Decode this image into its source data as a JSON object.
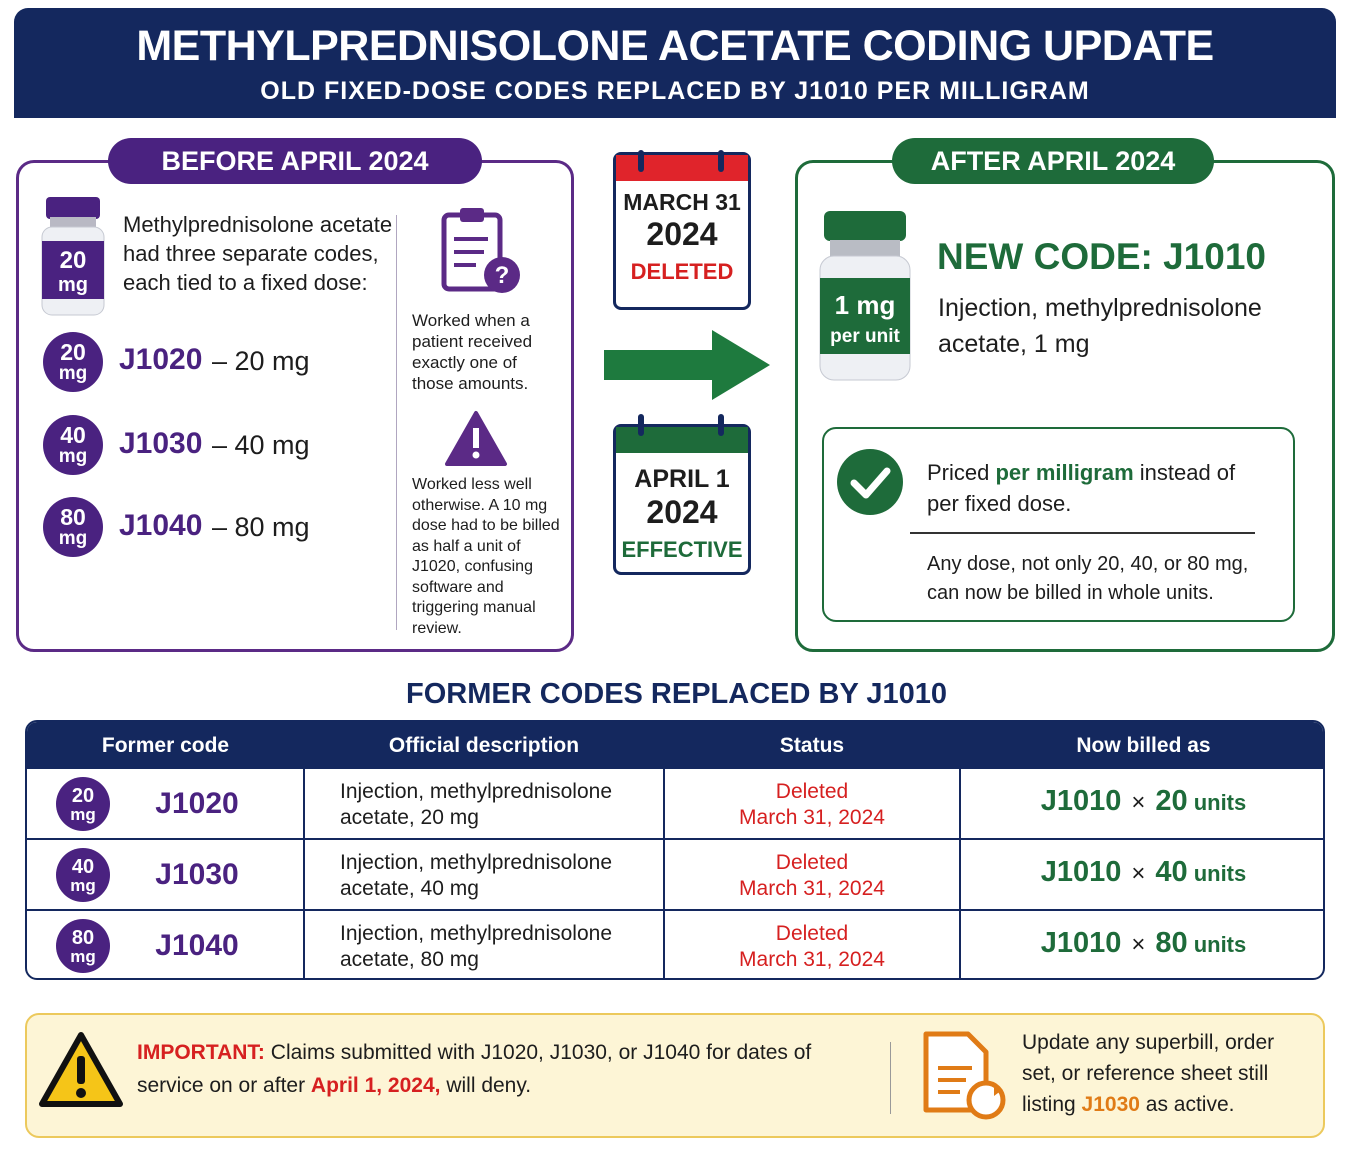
{
  "header": {
    "title": "METHYLPREDNISOLONE ACETATE CODING UPDATE",
    "subtitle": "OLD FIXED-DOSE CODES REPLACED BY J1010 PER MILLIGRAM"
  },
  "before": {
    "title": "BEFORE APRIL 2024",
    "vial": {
      "dose": "20",
      "unit": "mg"
    },
    "intro": [
      "Methylprednisolone acetate",
      "had three separate codes,",
      "each tied to a fixed dose:"
    ],
    "codes": [
      {
        "dose": "20",
        "unit": "mg",
        "code": "J1020",
        "label": "– 20 mg"
      },
      {
        "dose": "40",
        "unit": "mg",
        "code": "J1030",
        "label": "– 40 mg"
      },
      {
        "dose": "80",
        "unit": "mg",
        "code": "J1040",
        "label": "– 80 mg"
      }
    ],
    "note_worked": "Worked when a patient received exactly one of those amounts.",
    "note_less": "Worked less well otherwise. A 10 mg dose had to be billed as half a unit of J1020, confusing software and triggering manual review."
  },
  "calendar_deleted": {
    "date": "MARCH 31",
    "year": "2024",
    "status": "DELETED"
  },
  "calendar_effective": {
    "date": "APRIL 1",
    "year": "2024",
    "status": "EFFECTIVE"
  },
  "after": {
    "title": "AFTER APRIL 2024",
    "vial": {
      "dose": "1 mg",
      "unit": "per unit"
    },
    "new_code": "NEW CODE: J1010",
    "description": "Injection, methylprednisolone acetate, 1 mg",
    "priced": {
      "before": "Priced ",
      "highlight": "per milligram",
      "after": " instead of per fixed dose."
    },
    "any_dose": "Any dose, not only 20, 40, or 80 mg, can now be billed in whole units."
  },
  "table": {
    "title": "FORMER CODES REPLACED BY J1010",
    "columns": [
      "Former code",
      "Official description",
      "Status",
      "Now billed as"
    ],
    "rows": [
      {
        "dose": "20",
        "unit": "mg",
        "code": "J1020",
        "description": "Injection, methylprednisolone acetate, 20 mg",
        "status": "Deleted",
        "status_date": "March 31, 2024",
        "new_code": "J1010",
        "times": "×",
        "units": "20",
        "units_label": "units"
      },
      {
        "dose": "40",
        "unit": "mg",
        "code": "J1030",
        "description": "Injection, methylprednisolone acetate, 40 mg",
        "status": "Deleted",
        "status_date": "March 31, 2024",
        "new_code": "J1010",
        "times": "×",
        "units": "40",
        "units_label": "units"
      },
      {
        "dose": "80",
        "unit": "mg",
        "code": "J1040",
        "description": "Injection, methylprednisolone acetate, 80 mg",
        "status": "Deleted",
        "status_date": "March 31, 2024",
        "new_code": "J1010",
        "times": "×",
        "units": "80",
        "units_label": "units"
      }
    ]
  },
  "footer": {
    "important_label": "IMPORTANT:",
    "important_text": " Claims submitted with J1020, J1030, or J1040 for dates of service on or after ",
    "important_date": "April 1, 2024,",
    "important_end": " will deny.",
    "update_text": "Update any superbill, order set, or reference sheet still listing ",
    "update_code": "J1030",
    "update_end": " as active."
  }
}
